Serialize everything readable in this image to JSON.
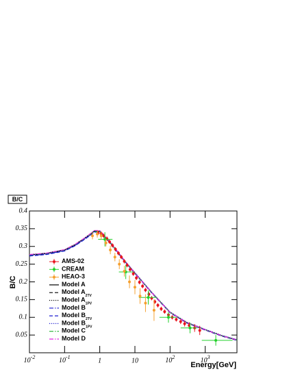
{
  "chart_data": {
    "type": "line",
    "title": "B/C",
    "x_label": "Energy[GeV]",
    "y_label": "B/C",
    "log_x": true,
    "xlim": [
      0.01,
      8000
    ],
    "ylim": [
      0,
      0.4
    ],
    "xticks": [
      {
        "value": 0.01,
        "label": "10",
        "exponent": "-2"
      },
      {
        "value": 0.1,
        "label": "10",
        "exponent": "-1"
      },
      1,
      10,
      {
        "value": 100,
        "label": "10",
        "exponent": "2"
      },
      {
        "value": 1000,
        "label": "10",
        "exponent": "3"
      }
    ],
    "yticks": [
      0.05,
      0.1,
      0.15,
      0.2,
      0.25,
      0.3,
      0.35,
      0.4
    ],
    "series": [
      {
        "name": "AMS-02",
        "kind": "points",
        "color": "#e8141e",
        "x": [
          0.9,
          1.1,
          1.3,
          1.6,
          1.9,
          2.3,
          2.8,
          3.4,
          4.1,
          5,
          6,
          7.3,
          9,
          11,
          13.5,
          16.5,
          20,
          25,
          30,
          37,
          45,
          56,
          70,
          90,
          115,
          150,
          200,
          260,
          350,
          500,
          700
        ],
        "values": [
          0.338,
          0.336,
          0.33,
          0.322,
          0.313,
          0.303,
          0.292,
          0.281,
          0.27,
          0.258,
          0.247,
          0.235,
          0.223,
          0.211,
          0.199,
          0.188,
          0.177,
          0.165,
          0.154,
          0.144,
          0.134,
          0.124,
          0.116,
          0.107,
          0.1,
          0.094,
          0.088,
          0.082,
          0.077,
          0.07,
          0.063
        ],
        "errors": [
          0.006,
          0.006,
          0.006,
          0.006,
          0.006,
          0.006,
          0.006,
          0.006,
          0.006,
          0.006,
          0.006,
          0.006,
          0.006,
          0.006,
          0.006,
          0.006,
          0.006,
          0.006,
          0.006,
          0.006,
          0.006,
          0.006,
          0.006,
          0.006,
          0.006,
          0.006,
          0.007,
          0.008,
          0.009,
          0.011,
          0.013
        ]
      },
      {
        "name": "CREAM",
        "kind": "points",
        "color": "#22d02a",
        "x": [
          1.4,
          5.5,
          24,
          90,
          370,
          2000
        ],
        "x_low": [
          0.9,
          3.5,
          13,
          50,
          200,
          800
        ],
        "x_high": [
          2.3,
          9,
          40,
          150,
          600,
          6000
        ],
        "values": [
          0.32,
          0.228,
          0.156,
          0.1,
          0.07,
          0.035
        ],
        "errors": [
          0.02,
          0.02,
          0.02,
          0.015,
          0.015,
          0.015
        ]
      },
      {
        "name": "HEAO-3",
        "kind": "points",
        "color": "#f5a030",
        "x": [
          0.62,
          0.85,
          1.1,
          1.5,
          2,
          2.7,
          3.6,
          5,
          7,
          10,
          14,
          20,
          35
        ],
        "values": [
          0.33,
          0.335,
          0.33,
          0.31,
          0.29,
          0.27,
          0.25,
          0.23,
          0.2,
          0.185,
          0.16,
          0.14,
          0.12
        ],
        "errors": [
          0.01,
          0.01,
          0.01,
          0.01,
          0.012,
          0.012,
          0.014,
          0.015,
          0.018,
          0.02,
          0.022,
          0.025,
          0.03
        ]
      },
      {
        "name": "Model A",
        "kind": "line",
        "style": "solid",
        "color": "#000000",
        "x": [
          0.01,
          0.03,
          0.1,
          0.2,
          0.4,
          0.7,
          1,
          2,
          5,
          10,
          30,
          100,
          300,
          1000,
          3000,
          8000
        ],
        "values": [
          0.276,
          0.28,
          0.29,
          0.305,
          0.325,
          0.343,
          0.343,
          0.31,
          0.26,
          0.225,
          0.17,
          0.114,
          0.085,
          0.065,
          0.048,
          0.036
        ]
      },
      {
        "name": "Model A",
        "subscript": "2TV",
        "kind": "line",
        "style": "dashed",
        "color": "#000000",
        "x": [
          0.01,
          0.03,
          0.1,
          0.2,
          0.4,
          0.7,
          1,
          2,
          5,
          10,
          30,
          100,
          300,
          1000,
          3000,
          8000
        ],
        "values": [
          0.275,
          0.279,
          0.289,
          0.304,
          0.324,
          0.342,
          0.342,
          0.309,
          0.259,
          0.224,
          0.169,
          0.113,
          0.084,
          0.064,
          0.047,
          0.035
        ]
      },
      {
        "name": "Model A",
        "subscript": "1PV",
        "kind": "line",
        "style": "dotted",
        "color": "#000000",
        "x": [
          0.01,
          0.03,
          0.1,
          0.2,
          0.4,
          0.7,
          1,
          2,
          5,
          10,
          30,
          100,
          300,
          1000,
          3000,
          8000
        ],
        "values": [
          0.277,
          0.281,
          0.291,
          0.306,
          0.326,
          0.344,
          0.344,
          0.311,
          0.261,
          0.226,
          0.171,
          0.115,
          0.086,
          0.066,
          0.049,
          0.037
        ]
      },
      {
        "name": "Model B",
        "kind": "line",
        "style": "dashdot",
        "color": "#1a1ad0",
        "x": [
          0.01,
          0.03,
          0.1,
          0.2,
          0.4,
          0.7,
          1,
          2,
          5,
          10,
          30,
          100,
          300,
          1000,
          3000,
          8000
        ],
        "values": [
          0.274,
          0.278,
          0.288,
          0.303,
          0.323,
          0.341,
          0.342,
          0.31,
          0.26,
          0.225,
          0.17,
          0.114,
          0.085,
          0.065,
          0.048,
          0.036
        ]
      },
      {
        "name": "Model B",
        "subscript": "2TV",
        "kind": "line",
        "style": "dashed",
        "color": "#1a1ad0",
        "x": [
          0.01,
          0.03,
          0.1,
          0.2,
          0.4,
          0.7,
          1,
          2,
          5,
          10,
          30,
          100,
          300,
          1000,
          3000,
          8000
        ],
        "values": [
          0.273,
          0.277,
          0.287,
          0.302,
          0.322,
          0.34,
          0.341,
          0.309,
          0.259,
          0.224,
          0.169,
          0.113,
          0.084,
          0.064,
          0.047,
          0.035
        ]
      },
      {
        "name": "Model B",
        "subscript": "1PV",
        "kind": "line",
        "style": "dotted",
        "color": "#1a1ad0",
        "x": [
          0.01,
          0.03,
          0.1,
          0.2,
          0.4,
          0.7,
          1,
          2,
          5,
          10,
          30,
          100,
          300,
          1000,
          3000,
          8000
        ],
        "values": [
          0.275,
          0.279,
          0.289,
          0.304,
          0.324,
          0.342,
          0.343,
          0.311,
          0.261,
          0.226,
          0.171,
          0.115,
          0.086,
          0.066,
          0.049,
          0.037
        ]
      },
      {
        "name": "Model C",
        "kind": "line",
        "style": "dashdot",
        "color": "#22b030",
        "x": [
          0.01,
          0.03,
          0.1,
          0.2,
          0.4,
          0.7,
          1,
          2,
          5,
          10,
          30,
          100,
          300,
          1000,
          3000,
          8000
        ],
        "values": [
          0.276,
          0.28,
          0.29,
          0.305,
          0.325,
          0.342,
          0.342,
          0.31,
          0.26,
          0.225,
          0.17,
          0.114,
          0.085,
          0.065,
          0.048,
          0.036
        ]
      },
      {
        "name": "Model D",
        "kind": "line",
        "style": "dashdot",
        "color": "#e020e0",
        "x": [
          0.01,
          0.03,
          0.1,
          0.2,
          0.4,
          0.7,
          1,
          2,
          5,
          10,
          30,
          100,
          300,
          1000,
          3000,
          8000
        ],
        "values": [
          0.277,
          0.281,
          0.291,
          0.306,
          0.326,
          0.345,
          0.345,
          0.312,
          0.261,
          0.225,
          0.17,
          0.114,
          0.085,
          0.065,
          0.048,
          0.036
        ]
      }
    ]
  }
}
